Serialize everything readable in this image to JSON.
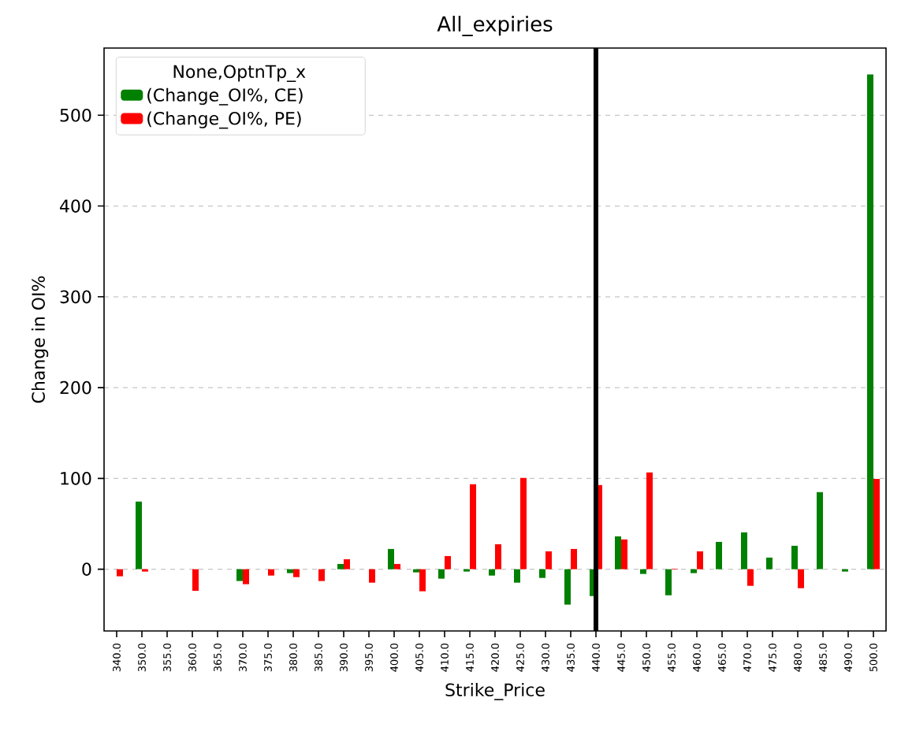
{
  "chart_data": {
    "type": "bar",
    "title": "All_expiries",
    "xlabel": "Strike_Price",
    "ylabel": "Change in OI%",
    "legend_title": "None,OptnTp_x",
    "categories": [
      "340.0",
      "350.0",
      "355.0",
      "360.0",
      "365.0",
      "370.0",
      "375.0",
      "380.0",
      "385.0",
      "390.0",
      "395.0",
      "400.0",
      "405.0",
      "410.0",
      "415.0",
      "420.0",
      "425.0",
      "430.0",
      "435.0",
      "440.0",
      "445.0",
      "450.0",
      "455.0",
      "460.0",
      "465.0",
      "470.0",
      "475.0",
      "480.0",
      "485.0",
      "490.0",
      "500.0"
    ],
    "series": [
      {
        "name": "(Change_OI%, CE)",
        "color": "#008000",
        "values": [
          null,
          74.5,
          null,
          null,
          null,
          -13,
          null,
          -4.3,
          null,
          5.8,
          null,
          22.3,
          -3.5,
          -10.4,
          -2.6,
          -7,
          -14.8,
          -9.6,
          -39,
          -29.6,
          36.2,
          -5.2,
          -28.7,
          -4.3,
          30.1,
          40.6,
          12.8,
          25.8,
          84.9,
          -2.6,
          545
        ]
      },
      {
        "name": "(Change_OI%, PE)",
        "color": "#ff0000",
        "values": [
          -7.8,
          -2.6,
          null,
          -23.8,
          null,
          -16.5,
          -7,
          -8.7,
          -13,
          11,
          -14.8,
          5.8,
          -24.3,
          14.5,
          93.6,
          27.5,
          100.6,
          19.7,
          22.3,
          92.8,
          32.8,
          106.7,
          0.6,
          19.7,
          null,
          -18.3,
          null,
          -20.9,
          null,
          null,
          99.4
        ]
      }
    ],
    "ylim": [
      -68,
      574
    ],
    "yticks": [
      0,
      100,
      200,
      300,
      400,
      500
    ],
    "grid": "y",
    "legend": "top left",
    "ref_lines": [
      {
        "axis": "x",
        "value": "440.0",
        "color": "#000000"
      }
    ]
  }
}
